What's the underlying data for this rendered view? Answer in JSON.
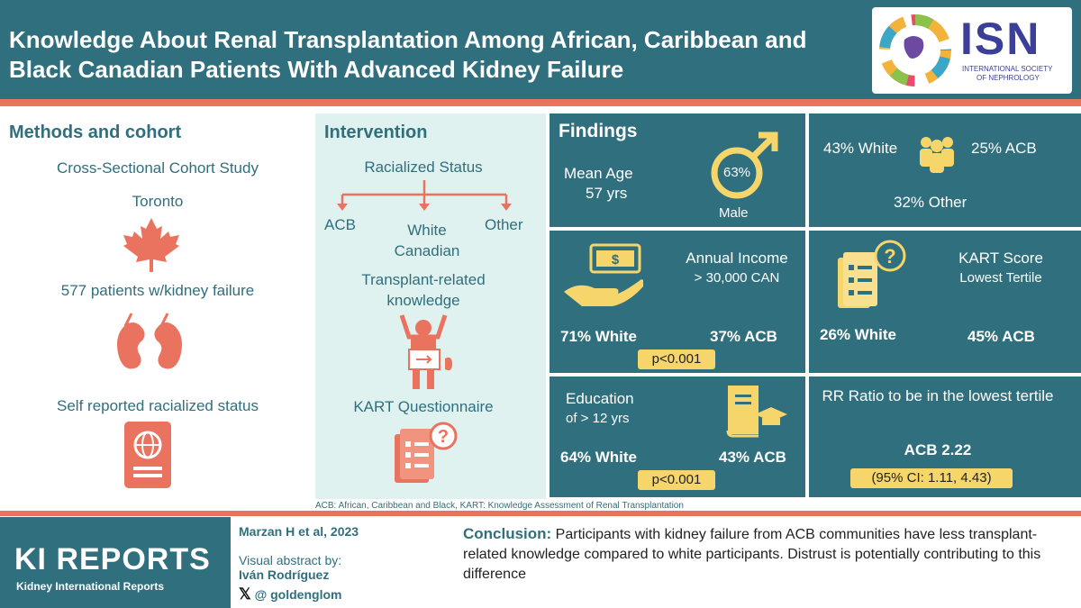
{
  "header": {
    "title": "Knowledge About Renal Transplantation Among African, Caribbean and Black Canadian Patients With Advanced Kidney Failure",
    "logo_abbr": "ISN",
    "logo_line1": "INTERNATIONAL SOCIETY",
    "logo_line2": "OF NEPHROLOGY"
  },
  "methods": {
    "title": "Methods and cohort",
    "design": "Cross-Sectional Cohort Study",
    "city": "Toronto",
    "patients": "577 patients w/kidney failure",
    "status": "Self reported racialized status"
  },
  "intervention": {
    "title": "Intervention",
    "racialized": "Racialized Status",
    "groups": [
      "ACB",
      "White Canadian",
      "Other"
    ],
    "knowledge": "Transplant-related knowledge",
    "questionnaire": "KART Questionnaire"
  },
  "findings": {
    "title": "Findings",
    "mean_age_label": "Mean Age",
    "mean_age_value": "57 yrs",
    "male_pct": "63%",
    "male_label": "Male",
    "white_pct": "43% White",
    "acb_pct": "25% ACB",
    "other_pct": "32% Other",
    "income_label1": "Annual Income",
    "income_label2": "> 30,000 CAN",
    "income_white": "71% White",
    "income_acb": "37% ACB",
    "income_p": "p<0.001",
    "kart_label1": "KART Score",
    "kart_label2": "Lowest Tertile",
    "kart_white": "26% White",
    "kart_acb": "45% ACB",
    "edu_label1": "Education",
    "edu_label2": "of > 12 yrs",
    "edu_white": "64% White",
    "edu_acb": "43% ACB",
    "edu_p": "p<0.001",
    "rr_label": "RR Ratio to be in the lowest tertile",
    "rr_value": "ACB 2.22",
    "rr_ci": "(95% CI: 1.11, 4.43)"
  },
  "footnote": "ACB: African, Caribbean  and Black, KART: Knowledge  Assessment of Renal Transplantation",
  "footer": {
    "journal": "KI REPORTS",
    "journal_sub": "Kidney International Reports",
    "citation": "Marzan H et al, 2023",
    "abstract_by": "Visual abstract by:",
    "author": "Iván Rodríguez",
    "handle": "@ goldenglom",
    "conclusion_label": "Conclusion:",
    "conclusion_text": "Participants with kidney failure from ACB communities have less transplant-related knowledge compared to white participants. Distrust is potentially contributing to this difference"
  }
}
